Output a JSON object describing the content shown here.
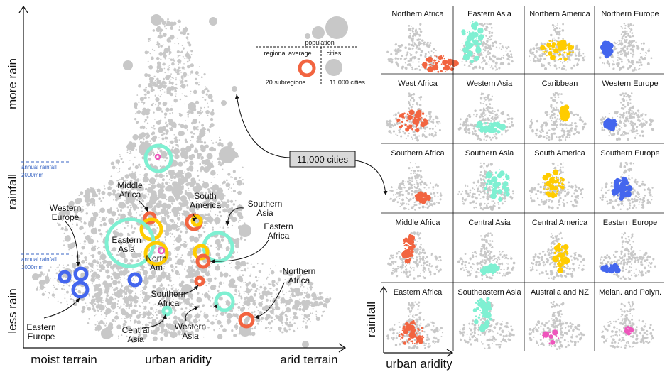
{
  "chart_data": [
    {
      "type": "scatter",
      "xlabel": "urban aridity",
      "ylabel": "rainfall",
      "x_axis_end_labels": [
        "moist terrain",
        "arid terrain"
      ],
      "y_axis_end_labels": [
        "less rain",
        "more rain"
      ],
      "callout": "11,000 cities",
      "references": [
        {
          "label_top": "annual rainfall",
          "label_bottom": "2000mm"
        },
        {
          "label_top": "annual rainfall",
          "label_bottom": "1000mm"
        }
      ],
      "legend": {
        "title": "population",
        "left_header": "regional average",
        "right_header": "cities",
        "left_caption": "20 subregions",
        "right_caption": "11,000 cities"
      },
      "labels": [
        "Middle Africa",
        "South America",
        "Southern Asia",
        "Western Europe",
        "Eastern Africa",
        "Eastern Asia",
        "North Am",
        "Southern Africa",
        "Northern Africa",
        "Eastern Europe",
        "Central Asia",
        "Western Asia"
      ],
      "colors": {
        "africa": "#f26440",
        "asia": "#7ff0d2",
        "americas": "#ffcc00",
        "europe": "#4466ee",
        "oceania": "#ee55bb",
        "cities": "#c8c8c8"
      }
    },
    {
      "type": "scatter",
      "xlabel": "urban aridity",
      "ylabel": "rainfall",
      "panels": [
        [
          "Northern Africa",
          "Eastern Asia",
          "Northern America",
          "Northern Europe"
        ],
        [
          "West Africa",
          "Western Asia",
          "Caribbean",
          "Western Europe"
        ],
        [
          "Southern Africa",
          "Southern Asia",
          "South America",
          "Southern Europe"
        ],
        [
          "Middle Africa",
          "Central Asia",
          "Central America",
          "Eastern Europe"
        ],
        [
          "Eastern Africa",
          "Southeastern Asia",
          "Australia and NZ",
          "Melan. and Polyn."
        ]
      ]
    }
  ]
}
